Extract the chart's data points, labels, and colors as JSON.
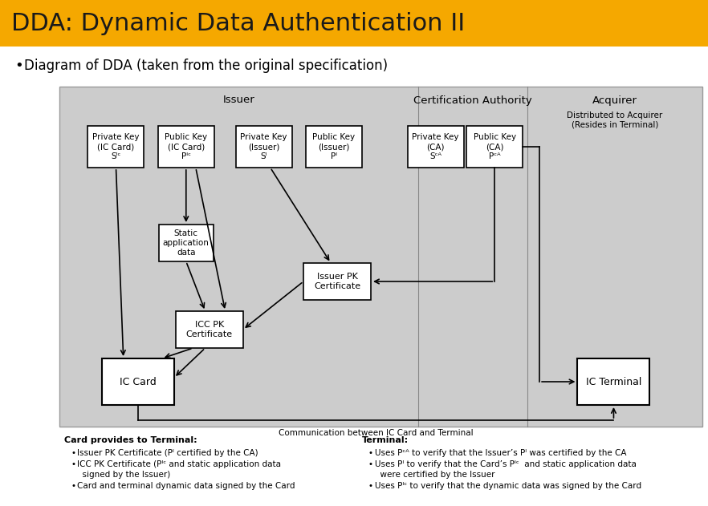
{
  "title": "DDA: Dynamic Data Authentication II",
  "title_bg": "#F5A800",
  "title_color": "#1a1a1a",
  "title_fontsize": 22,
  "bullet_text": "Diagram of DDA (taken from the original specification)",
  "diagram_bg": "#CCCCCC",
  "issuer_label": "Issuer",
  "cert_auth_label": "Certification Authority",
  "acquirer_label": "Acquirer",
  "acquirer_sub": "Distributed to Acquirer\n(Resides in Terminal)",
  "comm_label": "Communication between IC Card and Terminal",
  "bottom_left_title": "Card provides to Terminal:",
  "bottom_left_items": [
    "Issuer PK Certificate (Pᴵ certified by the CA)",
    "ICC PK Certificate (Pᴵᶜ and static application data\n  signed by the Issuer)",
    "Card and terminal dynamic data signed by the Card"
  ],
  "bottom_right_title": "Terminal:",
  "bottom_right_items": [
    "Uses Pᶜᴬ to verify that the Issuer’s Pᴵ was certified by the CA",
    "Uses Pᴵ to verify that the Card’s Pᴵᶜ  and static application data\n  were certified by the Issuer",
    "Uses Pᴵᶜ to verify that the dynamic data was signed by the Card"
  ]
}
